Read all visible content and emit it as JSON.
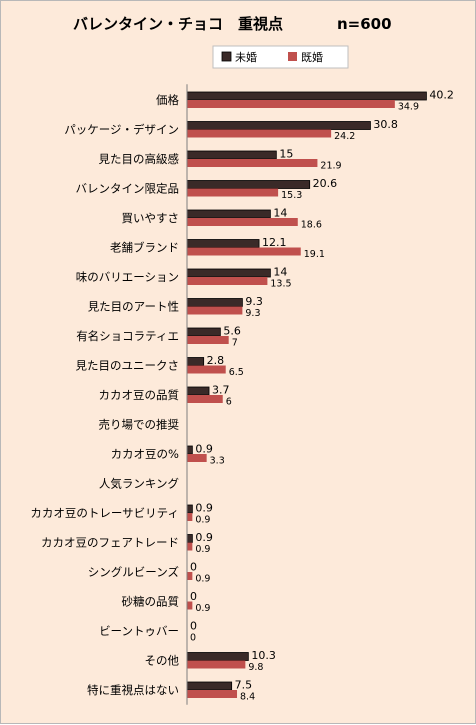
{
  "chart_data": {
    "type": "bar",
    "orientation": "horizontal",
    "title": "バレンタイン・チョコ　重視点",
    "sample_size": "n=600",
    "categories": [
      "価格",
      "パッケージ・デザイン",
      "見た目の高級感",
      "バレンタイン限定品",
      "買いやすさ",
      "老舗ブランド",
      "味のバリエーション",
      "見た目のアート性",
      "有名ショコラティエ",
      "見た目のユニークさ",
      "カカオ豆の品質",
      "売り場での推奨",
      "カカオ豆の%",
      "人気ランキング",
      "カカオ豆のトレーサビリティ",
      "カカオ豆のフェアトレード",
      "シングルビーンズ",
      "砂糖の品質",
      "ビーントゥバー",
      "その他",
      "特に重視点はない"
    ],
    "series": [
      {
        "name": "未婚",
        "color": "#3a2a28",
        "values": [
          40.2,
          30.8,
          15,
          20.6,
          14,
          12.1,
          14,
          9.3,
          5.6,
          2.8,
          3.7,
          null,
          0.9,
          null,
          0.9,
          0.9,
          0,
          0,
          0,
          10.3,
          7.5
        ],
        "labels": [
          "40.2",
          "30.8",
          "15",
          "20.6",
          "14",
          "12.1",
          "14",
          "9.3",
          "5.6",
          "2.8",
          "3.7",
          "",
          "0.9",
          "",
          "0.9",
          "0.9",
          "0",
          "0",
          "0",
          "10.3",
          "7.5"
        ]
      },
      {
        "name": "既婚",
        "color": "#c0504d",
        "values": [
          34.9,
          24.2,
          21.9,
          15.3,
          18.6,
          19.1,
          13.5,
          9.3,
          7,
          6.5,
          6,
          null,
          3.3,
          null,
          0.9,
          0.9,
          0.9,
          0.9,
          0,
          9.8,
          8.4
        ],
        "labels": [
          "34.9",
          "24.2",
          "21.9",
          "15.3",
          "18.6",
          "19.1",
          "13.5",
          "9.3",
          "7",
          "6.5",
          "6",
          "",
          "3.3",
          "",
          "0.9",
          "0.9",
          "0.9",
          "0.9",
          "0",
          "9.8",
          "8.4"
        ]
      }
    ],
    "xlim": [
      0,
      45
    ],
    "legend_position": "top-right",
    "grid": false
  }
}
